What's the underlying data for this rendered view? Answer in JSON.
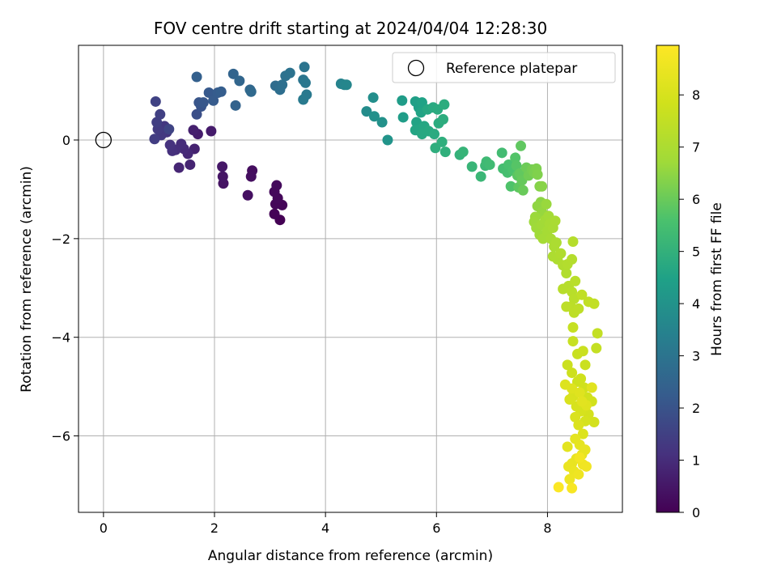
{
  "chart_data": {
    "type": "scatter",
    "title": "FOV centre drift starting at 2024/04/04 12:28:30",
    "xlabel": "Angular distance from reference (arcmin)",
    "ylabel": "Rotation from reference (arcmin)",
    "xlim": [
      -0.45,
      9.35
    ],
    "ylim": [
      -7.55,
      1.92
    ],
    "grid": true,
    "legend": {
      "position": "top-right",
      "label": "Reference platepar"
    },
    "xticks": [
      0,
      2,
      4,
      6,
      8
    ],
    "yticks": [
      -6,
      -4,
      -2,
      0
    ],
    "reference_point": {
      "x": 0,
      "y": 0
    },
    "colorbar": {
      "label": "Hours from first FF file",
      "min": 0,
      "max": 8.95,
      "ticks": [
        0,
        1,
        2,
        3,
        4,
        5,
        6,
        7,
        8
      ],
      "colormap": "viridis"
    },
    "points": [
      [
        3.18,
        -1.62,
        0.0
      ],
      [
        3.08,
        -1.5,
        0.05
      ],
      [
        3.22,
        -1.32,
        0.1
      ],
      [
        3.1,
        -1.3,
        0.12
      ],
      [
        3.14,
        -1.18,
        0.15
      ],
      [
        3.08,
        -1.05,
        0.18
      ],
      [
        3.12,
        -0.92,
        0.2
      ],
      [
        2.68,
        -0.62,
        0.3
      ],
      [
        2.66,
        -0.74,
        0.33
      ],
      [
        2.6,
        -1.12,
        0.35
      ],
      [
        2.16,
        -0.88,
        0.4
      ],
      [
        2.15,
        -0.74,
        0.45
      ],
      [
        2.14,
        -0.54,
        0.5
      ],
      [
        1.94,
        0.18,
        0.6
      ],
      [
        1.7,
        0.12,
        0.65
      ],
      [
        1.62,
        0.2,
        0.7
      ],
      [
        1.64,
        -0.18,
        0.75
      ],
      [
        1.56,
        -0.5,
        0.8
      ],
      [
        1.36,
        -0.56,
        0.85
      ],
      [
        1.52,
        -0.28,
        0.9
      ],
      [
        1.45,
        -0.18,
        0.95
      ],
      [
        1.4,
        -0.08,
        1.0
      ],
      [
        1.3,
        -0.2,
        1.05
      ],
      [
        1.24,
        -0.22,
        1.1
      ],
      [
        1.2,
        -0.1,
        1.15
      ],
      [
        1.14,
        0.16,
        1.2
      ],
      [
        1.1,
        0.28,
        1.25
      ],
      [
        1.04,
        0.1,
        1.3
      ],
      [
        0.98,
        0.22,
        1.35
      ],
      [
        0.92,
        0.02,
        1.4
      ],
      [
        0.96,
        0.36,
        1.45
      ],
      [
        1.02,
        0.52,
        1.5
      ],
      [
        0.94,
        0.78,
        1.55
      ],
      [
        1.18,
        0.22,
        1.6
      ],
      [
        1.68,
        0.52,
        1.9
      ],
      [
        1.76,
        0.68,
        2.0
      ],
      [
        1.72,
        0.76,
        2.05
      ],
      [
        1.8,
        0.76,
        2.1
      ],
      [
        1.9,
        0.96,
        2.15
      ],
      [
        1.98,
        0.8,
        2.2
      ],
      [
        2.06,
        0.96,
        2.25
      ],
      [
        2.12,
        0.98,
        2.3
      ],
      [
        1.68,
        1.28,
        2.35
      ],
      [
        2.38,
        0.7,
        2.45
      ],
      [
        2.34,
        1.34,
        2.5
      ],
      [
        2.45,
        1.2,
        2.55
      ],
      [
        2.64,
        1.02,
        2.6
      ],
      [
        2.66,
        0.98,
        2.65
      ],
      [
        3.1,
        1.1,
        2.75
      ],
      [
        3.18,
        1.02,
        2.8
      ],
      [
        3.22,
        1.12,
        2.85
      ],
      [
        3.28,
        1.3,
        2.9
      ],
      [
        3.36,
        1.36,
        2.95
      ],
      [
        3.62,
        1.48,
        3.0
      ],
      [
        3.6,
        1.22,
        3.05
      ],
      [
        3.64,
        1.16,
        3.1
      ],
      [
        3.66,
        0.92,
        3.15
      ],
      [
        3.6,
        0.82,
        3.2
      ],
      [
        4.28,
        1.14,
        3.5
      ],
      [
        4.34,
        1.12,
        3.55
      ],
      [
        4.38,
        1.12,
        3.6
      ],
      [
        4.74,
        0.58,
        3.8
      ],
      [
        4.86,
        0.86,
        3.85
      ],
      [
        4.88,
        0.48,
        3.9
      ],
      [
        5.02,
        0.36,
        3.95
      ],
      [
        5.12,
        0.0,
        4.05
      ],
      [
        5.38,
        0.8,
        4.3
      ],
      [
        5.4,
        0.46,
        4.35
      ],
      [
        5.62,
        0.78,
        4.4
      ],
      [
        5.68,
        0.66,
        4.45
      ],
      [
        5.74,
        0.76,
        4.5
      ],
      [
        5.72,
        0.56,
        4.55
      ],
      [
        5.64,
        0.36,
        4.55
      ],
      [
        5.62,
        0.2,
        4.6
      ],
      [
        5.7,
        0.22,
        4.62
      ],
      [
        5.78,
        0.28,
        4.65
      ],
      [
        5.84,
        0.62,
        4.68
      ],
      [
        5.74,
        0.12,
        4.7
      ],
      [
        5.86,
        0.18,
        4.72
      ],
      [
        5.94,
        0.66,
        4.75
      ],
      [
        5.96,
        0.12,
        4.78
      ],
      [
        6.02,
        0.62,
        4.8
      ],
      [
        6.04,
        0.34,
        4.82
      ],
      [
        6.12,
        0.42,
        4.85
      ],
      [
        6.14,
        0.72,
        4.85
      ],
      [
        5.98,
        -0.16,
        4.9
      ],
      [
        6.1,
        -0.04,
        4.92
      ],
      [
        6.16,
        -0.24,
        4.95
      ],
      [
        6.42,
        -0.3,
        5.05
      ],
      [
        6.48,
        -0.24,
        5.1
      ],
      [
        6.64,
        -0.54,
        5.15
      ],
      [
        6.8,
        -0.74,
        5.2
      ],
      [
        6.88,
        -0.52,
        5.25
      ],
      [
        6.9,
        -0.44,
        5.3
      ],
      [
        6.96,
        -0.5,
        5.35
      ],
      [
        7.18,
        -0.26,
        5.4
      ],
      [
        7.2,
        -0.58,
        5.45
      ],
      [
        7.28,
        -0.66,
        5.5
      ],
      [
        7.3,
        -0.5,
        5.55
      ],
      [
        7.38,
        -0.62,
        5.6
      ],
      [
        7.34,
        -0.94,
        5.65
      ],
      [
        7.42,
        -0.36,
        5.7
      ],
      [
        7.44,
        -0.52,
        5.75
      ],
      [
        7.46,
        -0.72,
        5.8
      ],
      [
        7.48,
        -0.96,
        5.85
      ],
      [
        7.52,
        -0.12,
        5.88
      ],
      [
        7.5,
        -0.68,
        5.9
      ],
      [
        7.54,
        -0.82,
        5.95
      ],
      [
        7.56,
        -1.02,
        6.0
      ],
      [
        7.62,
        -0.56,
        6.05
      ],
      [
        7.66,
        -0.72,
        6.1
      ],
      [
        7.72,
        -0.6,
        6.15
      ],
      [
        7.76,
        -0.66,
        6.2
      ],
      [
        7.8,
        -0.58,
        6.25
      ],
      [
        7.82,
        -0.7,
        6.3
      ],
      [
        7.86,
        -0.94,
        6.35
      ],
      [
        7.9,
        -0.94,
        6.4
      ],
      [
        7.88,
        -1.26,
        6.45
      ],
      [
        7.82,
        -1.34,
        6.5
      ],
      [
        7.9,
        -1.46,
        6.55
      ],
      [
        7.94,
        -1.52,
        6.6
      ],
      [
        7.98,
        -1.3,
        6.62
      ],
      [
        7.78,
        -1.56,
        6.65
      ],
      [
        7.76,
        -1.66,
        6.68
      ],
      [
        7.8,
        -1.78,
        6.7
      ],
      [
        7.86,
        -1.92,
        6.72
      ],
      [
        7.9,
        -1.72,
        6.75
      ],
      [
        7.96,
        -1.62,
        6.78
      ],
      [
        8.02,
        -1.54,
        6.8
      ],
      [
        7.92,
        -2.0,
        6.82
      ],
      [
        8.0,
        -1.84,
        6.85
      ],
      [
        8.04,
        -1.7,
        6.88
      ],
      [
        8.06,
        -2.0,
        6.9
      ],
      [
        8.1,
        -1.78,
        6.92
      ],
      [
        8.14,
        -1.64,
        6.95
      ],
      [
        8.12,
        -2.16,
        6.97
      ],
      [
        8.16,
        -2.08,
        7.0
      ],
      [
        8.1,
        -2.36,
        7.02
      ],
      [
        8.18,
        -2.42,
        7.05
      ],
      [
        8.24,
        -2.3,
        7.08
      ],
      [
        8.28,
        -2.54,
        7.1
      ],
      [
        8.34,
        -2.7,
        7.12
      ],
      [
        8.36,
        -2.52,
        7.15
      ],
      [
        8.44,
        -2.42,
        7.18
      ],
      [
        8.46,
        -2.06,
        7.2
      ],
      [
        8.38,
        -2.96,
        7.22
      ],
      [
        8.28,
        -3.02,
        7.25
      ],
      [
        8.44,
        -3.08,
        7.28
      ],
      [
        8.5,
        -2.86,
        7.3
      ],
      [
        8.48,
        -3.22,
        7.32
      ],
      [
        8.42,
        -3.38,
        7.35
      ],
      [
        8.34,
        -3.38,
        7.38
      ],
      [
        8.48,
        -3.5,
        7.4
      ],
      [
        8.56,
        -3.42,
        7.42
      ],
      [
        8.62,
        -3.14,
        7.45
      ],
      [
        8.74,
        -3.28,
        7.48
      ],
      [
        8.84,
        -3.32,
        7.5
      ],
      [
        8.9,
        -3.92,
        7.52
      ],
      [
        8.88,
        -4.22,
        7.55
      ],
      [
        8.46,
        -3.8,
        7.6
      ],
      [
        8.46,
        -4.08,
        7.62
      ],
      [
        8.54,
        -4.34,
        7.65
      ],
      [
        8.64,
        -4.28,
        7.68
      ],
      [
        8.68,
        -4.56,
        7.7
      ],
      [
        8.36,
        -4.56,
        7.72
      ],
      [
        8.44,
        -4.72,
        7.75
      ],
      [
        8.54,
        -4.9,
        7.78
      ],
      [
        8.6,
        -4.84,
        7.8
      ],
      [
        8.66,
        -5.02,
        7.82
      ],
      [
        8.72,
        -5.22,
        7.85
      ],
      [
        8.8,
        -5.3,
        7.88
      ],
      [
        8.84,
        -5.72,
        7.9
      ],
      [
        8.74,
        -5.56,
        7.92
      ],
      [
        8.68,
        -5.7,
        7.95
      ],
      [
        8.6,
        -5.5,
        7.98
      ],
      [
        8.52,
        -5.4,
        8.0
      ],
      [
        8.46,
        -5.2,
        8.02
      ],
      [
        8.4,
        -5.26,
        8.05
      ],
      [
        8.5,
        -5.62,
        8.08
      ],
      [
        8.56,
        -5.78,
        8.1
      ],
      [
        8.64,
        -5.96,
        8.12
      ],
      [
        8.32,
        -4.96,
        8.15
      ],
      [
        8.44,
        -5.04,
        8.18
      ],
      [
        8.58,
        -5.12,
        8.2
      ],
      [
        8.7,
        -5.38,
        8.22
      ],
      [
        8.8,
        -5.02,
        8.25
      ],
      [
        8.62,
        -5.3,
        8.28
      ],
      [
        8.36,
        -6.22,
        8.3
      ],
      [
        8.5,
        -6.06,
        8.32
      ],
      [
        8.58,
        -6.18,
        8.35
      ],
      [
        8.62,
        -6.38,
        8.38
      ],
      [
        8.68,
        -6.28,
        8.4
      ],
      [
        8.52,
        -6.46,
        8.42
      ],
      [
        8.44,
        -6.56,
        8.45
      ],
      [
        8.38,
        -6.62,
        8.48
      ],
      [
        8.48,
        -6.72,
        8.5
      ],
      [
        8.4,
        -6.88,
        8.55
      ],
      [
        8.56,
        -6.78,
        8.6
      ],
      [
        8.64,
        -6.58,
        8.62
      ],
      [
        8.7,
        -6.62,
        8.65
      ],
      [
        8.58,
        -6.44,
        8.7
      ],
      [
        8.44,
        -7.06,
        8.8
      ],
      [
        8.2,
        -7.04,
        8.9
      ]
    ]
  }
}
